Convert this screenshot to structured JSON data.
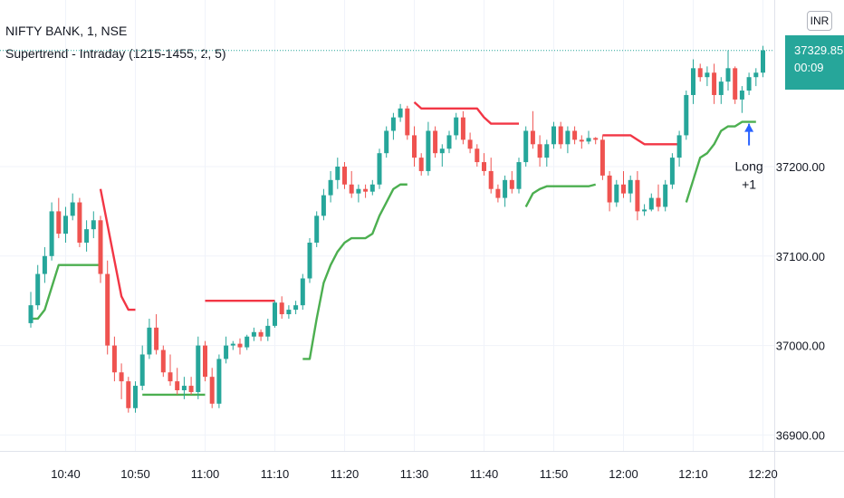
{
  "header": {
    "symbol_title": "NIFTY BANK, 1, NSE",
    "indicator_title": "Supertrend - Intraday (1215-1455, 2, 5)"
  },
  "currency_label": "INR",
  "last_price": {
    "value": "37329.85",
    "countdown": "00:09"
  },
  "colors": {
    "up": "#26a69a",
    "down": "#ef5350",
    "supertrend_up": "#4caf50",
    "supertrend_down": "#f23645",
    "signal_arrow": "#2962ff",
    "grid": "#f0f3fa"
  },
  "chart_data": {
    "type": "candlestick",
    "y_ticks": [
      "37200.00",
      "37100.00",
      "37000.00",
      "36900.00"
    ],
    "y_tick_values": [
      37200,
      37100,
      37000,
      36900
    ],
    "x_ticks": [
      "10:40",
      "10:50",
      "11:00",
      "11:10",
      "11:20",
      "11:30",
      "11:40",
      "11:50",
      "12:00",
      "12:10",
      "12:20"
    ],
    "x_tick_minutes": [
      640,
      650,
      660,
      670,
      680,
      690,
      700,
      710,
      720,
      730,
      740
    ],
    "ylim": [
      36885,
      37370
    ],
    "xlim": [
      634.5,
      748.5
    ],
    "grid": true,
    "candles": [
      [
        635,
        37025,
        37060,
        37020,
        37045
      ],
      [
        636,
        37045,
        37090,
        37040,
        37080
      ],
      [
        637,
        37080,
        37110,
        37070,
        37100
      ],
      [
        638,
        37100,
        37160,
        37095,
        37150
      ],
      [
        639,
        37150,
        37165,
        37120,
        37125
      ],
      [
        640,
        37125,
        37155,
        37115,
        37145
      ],
      [
        641,
        37145,
        37170,
        37140,
        37160
      ],
      [
        642,
        37160,
        37165,
        37110,
        37115
      ],
      [
        643,
        37115,
        37140,
        37105,
        37130
      ],
      [
        644,
        37130,
        37150,
        37120,
        37140
      ],
      [
        645,
        37140,
        37145,
        37070,
        37080
      ],
      [
        646,
        37080,
        37095,
        36990,
        37000
      ],
      [
        647,
        37000,
        37010,
        36960,
        36970
      ],
      [
        648,
        36970,
        36980,
        36940,
        36960
      ],
      [
        649,
        36960,
        36965,
        36925,
        36930
      ],
      [
        650,
        36930,
        36960,
        36925,
        36955
      ],
      [
        651,
        36955,
        37000,
        36950,
        36990
      ],
      [
        652,
        36990,
        37030,
        36985,
        37020
      ],
      [
        653,
        37020,
        37035,
        36990,
        36995
      ],
      [
        654,
        36995,
        37000,
        36965,
        36970
      ],
      [
        655,
        36970,
        36990,
        36955,
        36960
      ],
      [
        656,
        36960,
        36975,
        36945,
        36950
      ],
      [
        657,
        36950,
        36965,
        36940,
        36955
      ],
      [
        658,
        36955,
        36965,
        36945,
        36948
      ],
      [
        659,
        36948,
        37010,
        36940,
        37000
      ],
      [
        660,
        37000,
        37005,
        36960,
        36965
      ],
      [
        661,
        36965,
        36975,
        36930,
        36935
      ],
      [
        662,
        36935,
        36990,
        36930,
        36985
      ],
      [
        663,
        36985,
        37010,
        36980,
        37000
      ],
      [
        664,
        37000,
        37005,
        36995,
        37002
      ],
      [
        665,
        37002,
        37008,
        36990,
        36998
      ],
      [
        666,
        36998,
        37012,
        36995,
        37010
      ],
      [
        667,
        37010,
        37020,
        37005,
        37015
      ],
      [
        668,
        37015,
        37018,
        37005,
        37010
      ],
      [
        669,
        37010,
        37030,
        37005,
        37022
      ],
      [
        670,
        37022,
        37050,
        37020,
        37048
      ],
      [
        671,
        37048,
        37055,
        37030,
        37035
      ],
      [
        672,
        37035,
        37045,
        37030,
        37040
      ],
      [
        673,
        37040,
        37050,
        37035,
        37045
      ],
      [
        674,
        37045,
        37080,
        37040,
        37075
      ],
      [
        675,
        37075,
        37120,
        37070,
        37115
      ],
      [
        676,
        37115,
        37150,
        37110,
        37145
      ],
      [
        677,
        37145,
        37175,
        37140,
        37168
      ],
      [
        678,
        37168,
        37195,
        37160,
        37185
      ],
      [
        679,
        37185,
        37210,
        37175,
        37200
      ],
      [
        680,
        37200,
        37205,
        37175,
        37180
      ],
      [
        681,
        37180,
        37195,
        37165,
        37170
      ],
      [
        682,
        37170,
        37180,
        37160,
        37175
      ],
      [
        683,
        37175,
        37180,
        37165,
        37172
      ],
      [
        684,
        37172,
        37185,
        37168,
        37180
      ],
      [
        685,
        37180,
        37220,
        37175,
        37215
      ],
      [
        686,
        37215,
        37245,
        37210,
        37240
      ],
      [
        687,
        37240,
        37260,
        37230,
        37255
      ],
      [
        688,
        37255,
        37270,
        37250,
        37265
      ],
      [
        689,
        37265,
        37268,
        37230,
        37235
      ],
      [
        690,
        37235,
        37245,
        37200,
        37210
      ],
      [
        691,
        37210,
        37215,
        37190,
        37195
      ],
      [
        692,
        37195,
        37250,
        37190,
        37240
      ],
      [
        693,
        37240,
        37245,
        37210,
        37215
      ],
      [
        694,
        37215,
        37225,
        37200,
        37220
      ],
      [
        695,
        37220,
        37240,
        37215,
        37235
      ],
      [
        696,
        37235,
        37260,
        37230,
        37255
      ],
      [
        697,
        37255,
        37262,
        37225,
        37230
      ],
      [
        698,
        37230,
        37238,
        37215,
        37220
      ],
      [
        699,
        37220,
        37225,
        37200,
        37205
      ],
      [
        700,
        37205,
        37215,
        37190,
        37195
      ],
      [
        701,
        37195,
        37210,
        37170,
        37175
      ],
      [
        702,
        37175,
        37180,
        37160,
        37165
      ],
      [
        703,
        37165,
        37190,
        37155,
        37185
      ],
      [
        704,
        37185,
        37195,
        37170,
        37175
      ],
      [
        705,
        37175,
        37210,
        37170,
        37205
      ],
      [
        706,
        37205,
        37245,
        37200,
        37240
      ],
      [
        707,
        37240,
        37262,
        37220,
        37225
      ],
      [
        708,
        37225,
        37235,
        37200,
        37210
      ],
      [
        709,
        37210,
        37230,
        37200,
        37225
      ],
      [
        710,
        37225,
        37250,
        37220,
        37245
      ],
      [
        711,
        37245,
        37250,
        37220,
        37225
      ],
      [
        712,
        37225,
        37245,
        37215,
        37240
      ],
      [
        713,
        37240,
        37245,
        37225,
        37230
      ],
      [
        714,
        37230,
        37235,
        37220,
        37228
      ],
      [
        715,
        37228,
        37240,
        37225,
        37232
      ],
      [
        716,
        37232,
        37233,
        37225,
        37230
      ],
      [
        717,
        37230,
        37235,
        37185,
        37190
      ],
      [
        718,
        37190,
        37195,
        37150,
        37160
      ],
      [
        719,
        37160,
        37185,
        37155,
        37180
      ],
      [
        720,
        37180,
        37195,
        37165,
        37170
      ],
      [
        721,
        37170,
        37190,
        37160,
        37185
      ],
      [
        722,
        37185,
        37195,
        37140,
        37150
      ],
      [
        723,
        37150,
        37158,
        37145,
        37152
      ],
      [
        724,
        37152,
        37170,
        37150,
        37165
      ],
      [
        725,
        37165,
        37180,
        37150,
        37155
      ],
      [
        726,
        37155,
        37185,
        37150,
        37180
      ],
      [
        727,
        37180,
        37215,
        37175,
        37210
      ],
      [
        728,
        37210,
        37240,
        37200,
        37235
      ],
      [
        729,
        37235,
        37285,
        37230,
        37280
      ],
      [
        730,
        37280,
        37320,
        37270,
        37310
      ],
      [
        731,
        37310,
        37315,
        37295,
        37300
      ],
      [
        732,
        37300,
        37312,
        37290,
        37305
      ],
      [
        733,
        37305,
        37315,
        37270,
        37280
      ],
      [
        734,
        37280,
        37300,
        37270,
        37295
      ],
      [
        735,
        37295,
        37330,
        37285,
        37310
      ],
      [
        736,
        37310,
        37312,
        37270,
        37275
      ],
      [
        737,
        37275,
        37290,
        37260,
        37285
      ],
      [
        738,
        37285,
        37305,
        37280,
        37300
      ],
      [
        739,
        37300,
        37310,
        37290,
        37305
      ],
      [
        740,
        37305,
        37335,
        37300,
        37330
      ]
    ],
    "supertrend_down": [
      {
        "x": [
          645,
          646,
          647,
          648,
          649,
          650
        ],
        "y": [
          37175,
          37135,
          37095,
          37055,
          37040,
          37040
        ]
      },
      {
        "x": [
          660,
          661,
          662,
          663,
          664,
          665,
          666,
          667,
          668,
          669,
          670
        ],
        "y": [
          37050,
          37050,
          37050,
          37050,
          37050,
          37050,
          37050,
          37050,
          37050,
          37050,
          37050
        ]
      },
      {
        "x": [
          690,
          691,
          692,
          693,
          694,
          695,
          696,
          697,
          698,
          699,
          700,
          701,
          702,
          703,
          704,
          705
        ],
        "y": [
          37272,
          37265,
          37265,
          37265,
          37265,
          37265,
          37265,
          37265,
          37265,
          37265,
          37255,
          37248,
          37248,
          37248,
          37248,
          37248
        ]
      },
      {
        "x": [
          717,
          718,
          719,
          720,
          721,
          722,
          723,
          724,
          725,
          726,
          727,
          728
        ],
        "y": [
          37235,
          37235,
          37235,
          37235,
          37235,
          37230,
          37225,
          37225,
          37225,
          37225,
          37225,
          37225
        ]
      }
    ],
    "supertrend_up": [
      {
        "x": [
          635,
          636,
          637,
          638,
          639,
          640,
          641,
          642,
          643,
          644,
          645
        ],
        "y": [
          37030,
          37030,
          37040,
          37065,
          37090,
          37090,
          37090,
          37090,
          37090,
          37090,
          37090
        ]
      },
      {
        "x": [
          651,
          652,
          653,
          654,
          655,
          656,
          657,
          658,
          659,
          660
        ],
        "y": [
          36945,
          36945,
          36945,
          36945,
          36945,
          36945,
          36945,
          36945,
          36945,
          36945
        ]
      },
      {
        "x": [
          674,
          675,
          676,
          677,
          678,
          679,
          680,
          681,
          682,
          683,
          684,
          685,
          686,
          687,
          688,
          689
        ],
        "y": [
          36985,
          36985,
          37030,
          37070,
          37090,
          37105,
          37115,
          37120,
          37120,
          37120,
          37125,
          37145,
          37160,
          37175,
          37180,
          37180
        ]
      },
      {
        "x": [
          706,
          707,
          708,
          709,
          710,
          711,
          712,
          713,
          714,
          715,
          716
        ],
        "y": [
          37155,
          37170,
          37175,
          37178,
          37178,
          37178,
          37178,
          37178,
          37178,
          37178,
          37180
        ]
      },
      {
        "x": [
          729,
          730,
          731,
          732,
          733,
          734,
          735,
          736,
          737,
          738,
          739
        ],
        "y": [
          37160,
          37185,
          37210,
          37215,
          37225,
          37240,
          37245,
          37245,
          37250,
          37250,
          37250
        ]
      }
    ],
    "signal": {
      "x": 738,
      "y": 37250,
      "label": "Long",
      "sublabel": "+1"
    },
    "last_value": 37329.85
  }
}
